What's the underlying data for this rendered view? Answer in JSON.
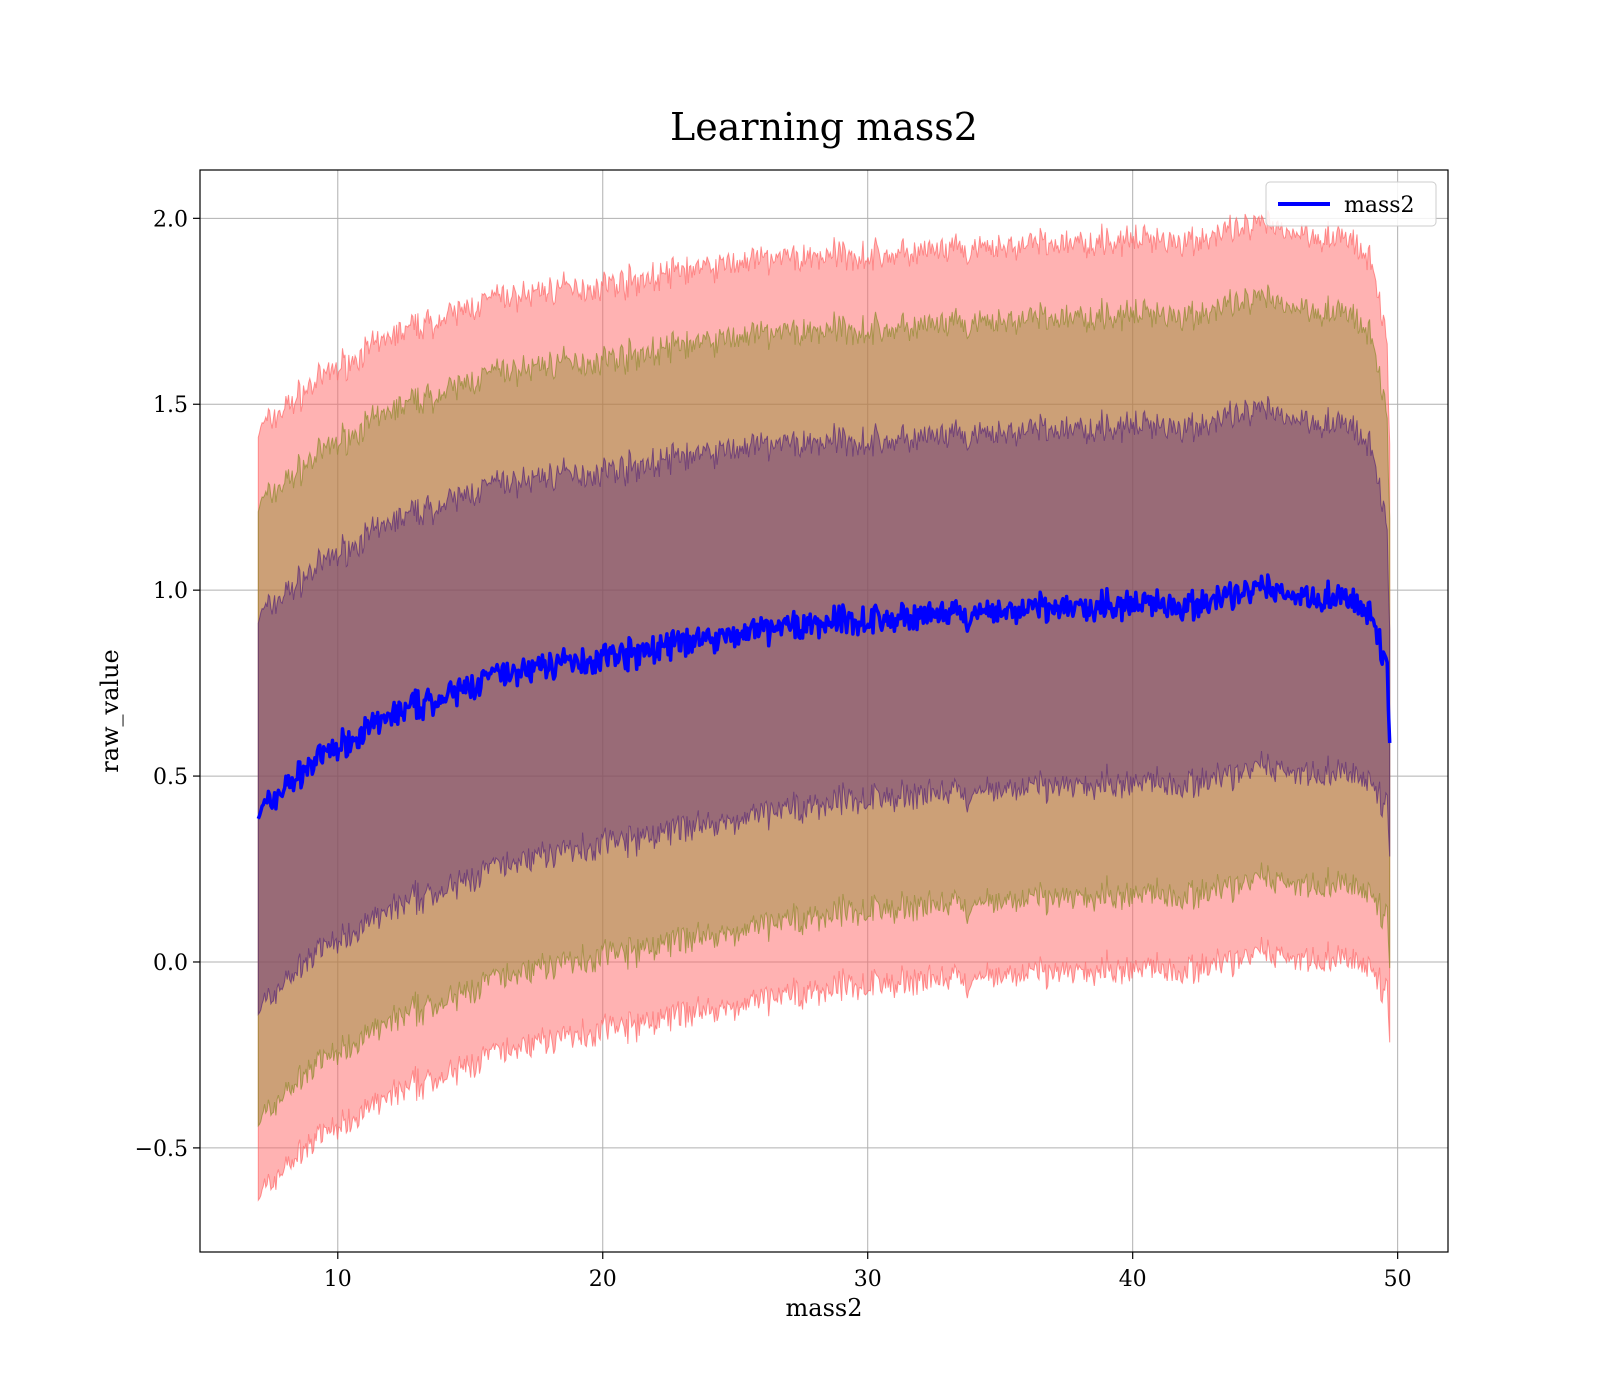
{
  "chart_data": {
    "type": "line",
    "title": "Learning mass2",
    "xlabel": "mass2",
    "ylabel": "raw_value",
    "xlim": [
      4.8,
      51.9
    ],
    "ylim": [
      -0.78,
      2.13
    ],
    "xticks": [
      10,
      20,
      30,
      40,
      50
    ],
    "yticks": [
      -0.5,
      0.0,
      0.5,
      1.0,
      1.5,
      2.0
    ],
    "xtick_labels": [
      "10",
      "20",
      "30",
      "40",
      "50"
    ],
    "ytick_labels": [
      "−0.5",
      "0.0",
      "0.5",
      "1.0",
      "1.5",
      "2.0"
    ],
    "grid": true,
    "legend": {
      "placement": "top-right",
      "entries": [
        {
          "label": "mass2",
          "color": "#0000ff"
        }
      ]
    },
    "series": [
      {
        "name": "mass2",
        "color": "#0000ff",
        "x": [
          7.0,
          8.0,
          9.0,
          10.0,
          11.0,
          12.0,
          13.0,
          14.0,
          15.0,
          16.0,
          17.0,
          18.0,
          19.0,
          20.0,
          21.0,
          22.0,
          23.0,
          24.0,
          25.0,
          26.0,
          27.0,
          28.0,
          29.0,
          30.0,
          31.0,
          32.0,
          33.0,
          34.0,
          35.0,
          36.0,
          37.0,
          38.0,
          39.0,
          40.0,
          41.0,
          42.0,
          43.0,
          44.0,
          45.0,
          46.0,
          47.0,
          48.0,
          48.5,
          49.0,
          49.3,
          49.6,
          49.7
        ],
        "y": [
          0.4,
          0.47,
          0.53,
          0.58,
          0.62,
          0.66,
          0.69,
          0.71,
          0.74,
          0.77,
          0.78,
          0.8,
          0.81,
          0.82,
          0.83,
          0.84,
          0.86,
          0.87,
          0.88,
          0.89,
          0.9,
          0.91,
          0.92,
          0.92,
          0.92,
          0.93,
          0.93,
          0.93,
          0.94,
          0.95,
          0.95,
          0.95,
          0.96,
          0.96,
          0.97,
          0.96,
          0.97,
          0.99,
          1.0,
          0.99,
          0.98,
          0.98,
          0.96,
          0.92,
          0.87,
          0.8,
          0.6
        ]
      }
    ],
    "bands": [
      {
        "sigma": 3,
        "color": "#ff6666",
        "opacity": 0.5,
        "half_width": 0.5
      },
      {
        "sigma": 2,
        "color": "#8f8a2e",
        "opacity": 0.45,
        "half_width": 0.3
      },
      {
        "sigma": 1,
        "color": "#5a2a78",
        "opacity": 0.45,
        "half_width": 0.0
      }
    ],
    "band_sigma_x": [
      7.0,
      8.0,
      10.0,
      15.0,
      20.0,
      25.0,
      30.0,
      35.0,
      40.0,
      45.0,
      48.0,
      49.0,
      49.5,
      49.7
    ],
    "band_sigma_y": [
      0.53,
      0.52,
      0.52,
      0.52,
      0.5,
      0.5,
      0.48,
      0.48,
      0.48,
      0.48,
      0.47,
      0.45,
      0.4,
      0.3
    ]
  }
}
